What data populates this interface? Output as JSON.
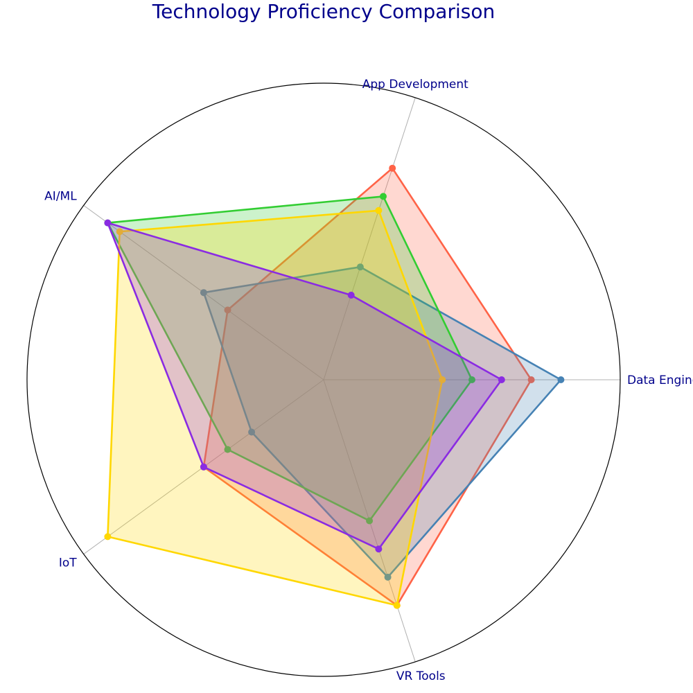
{
  "chart_data": {
    "type": "radar",
    "title": "Technology Proficiency Comparison",
    "axes": [
      "Data Engineering",
      "App Development",
      "AI/ML",
      "IoT",
      "VR Tools"
    ],
    "range": [
      0,
      10
    ],
    "grid": "spokes and outer ring only",
    "legend": "none",
    "series": [
      {
        "color": "#ff6347",
        "values": [
          7,
          7.5,
          4,
          5,
          8
        ]
      },
      {
        "color": "#4682b4",
        "values": [
          8,
          4,
          5,
          3,
          7
        ]
      },
      {
        "color": "#32cd32",
        "values": [
          5,
          6.5,
          9,
          4,
          5
        ]
      },
      {
        "color": "#ffd700",
        "values": [
          4,
          6,
          8.5,
          9,
          8
        ]
      },
      {
        "color": "#8a2be2",
        "values": [
          6,
          3,
          9,
          5,
          6
        ]
      }
    ]
  }
}
